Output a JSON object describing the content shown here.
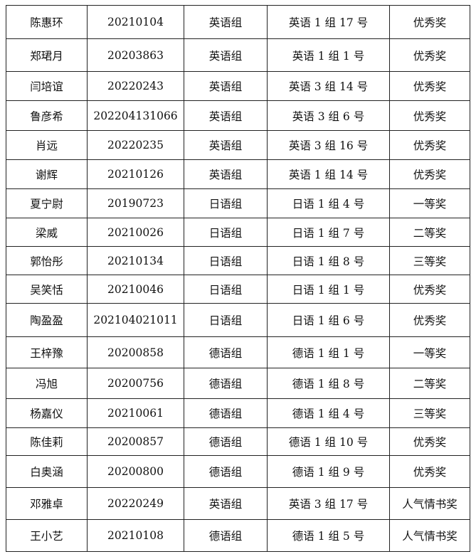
{
  "rows": [
    [
      "陈惠环",
      "20210104",
      "英语组",
      "英语 1 组 17 号",
      "优秀奖"
    ],
    [
      "郑珺月",
      "20203863",
      "英语组",
      "英语 1 组 1 号",
      "优秀奖"
    ],
    [
      "闫培谊",
      "20220243",
      "英语组",
      "英语 3 组 14 号",
      "优秀奖"
    ],
    [
      "鲁彦希",
      "202204131066",
      "英语组",
      "英语 3 组 6 号",
      "优秀奖"
    ],
    [
      "肖远",
      "20220235",
      "英语组",
      "英语 3 组 16 号",
      "优秀奖"
    ],
    [
      "谢辉",
      "20210126",
      "英语组",
      "英语 1 组 14 号",
      "优秀奖"
    ],
    [
      "夏宁尉",
      "20190723",
      "日语组",
      "日语 1 组 4 号",
      "一等奖"
    ],
    [
      "梁威",
      "20210026",
      "日语组",
      "日语 1 组 7 号",
      "二等奖"
    ],
    [
      "郭怡彤",
      "20210134",
      "日语组",
      "日语 1 组 8 号",
      "三等奖"
    ],
    [
      "吴笑恬",
      "20210046",
      "日语组",
      "日语 1 组 1 号",
      "优秀奖"
    ],
    [
      "陶盈盈",
      "202104021011",
      "日语组",
      "日语 1 组 6 号",
      "优秀奖"
    ],
    [
      "王梓豫",
      "20200858",
      "德语组",
      "德语 1 组 1 号",
      "一等奖"
    ],
    [
      "冯旭",
      "20200756",
      "德语组",
      "德语 1 组 8 号",
      "二等奖"
    ],
    [
      "杨嘉仪",
      "20210061",
      "德语组",
      "德语 1 组 4 号",
      "三等奖"
    ],
    [
      "陈佳莉",
      "20200857",
      "德语组",
      "德语 1 组 10 号",
      "优秀奖"
    ],
    [
      "白奥涵",
      "20200800",
      "德语组",
      "德语 1 组 9 号",
      "优秀奖"
    ],
    [
      "邓雅卓",
      "20220249",
      "英语组",
      "英语 3 组 17 号",
      "人气情书奖"
    ],
    [
      "王小艺",
      "20210108",
      "德语组",
      "德语 1 组 5 号",
      "人气情书奖"
    ]
  ]
}
